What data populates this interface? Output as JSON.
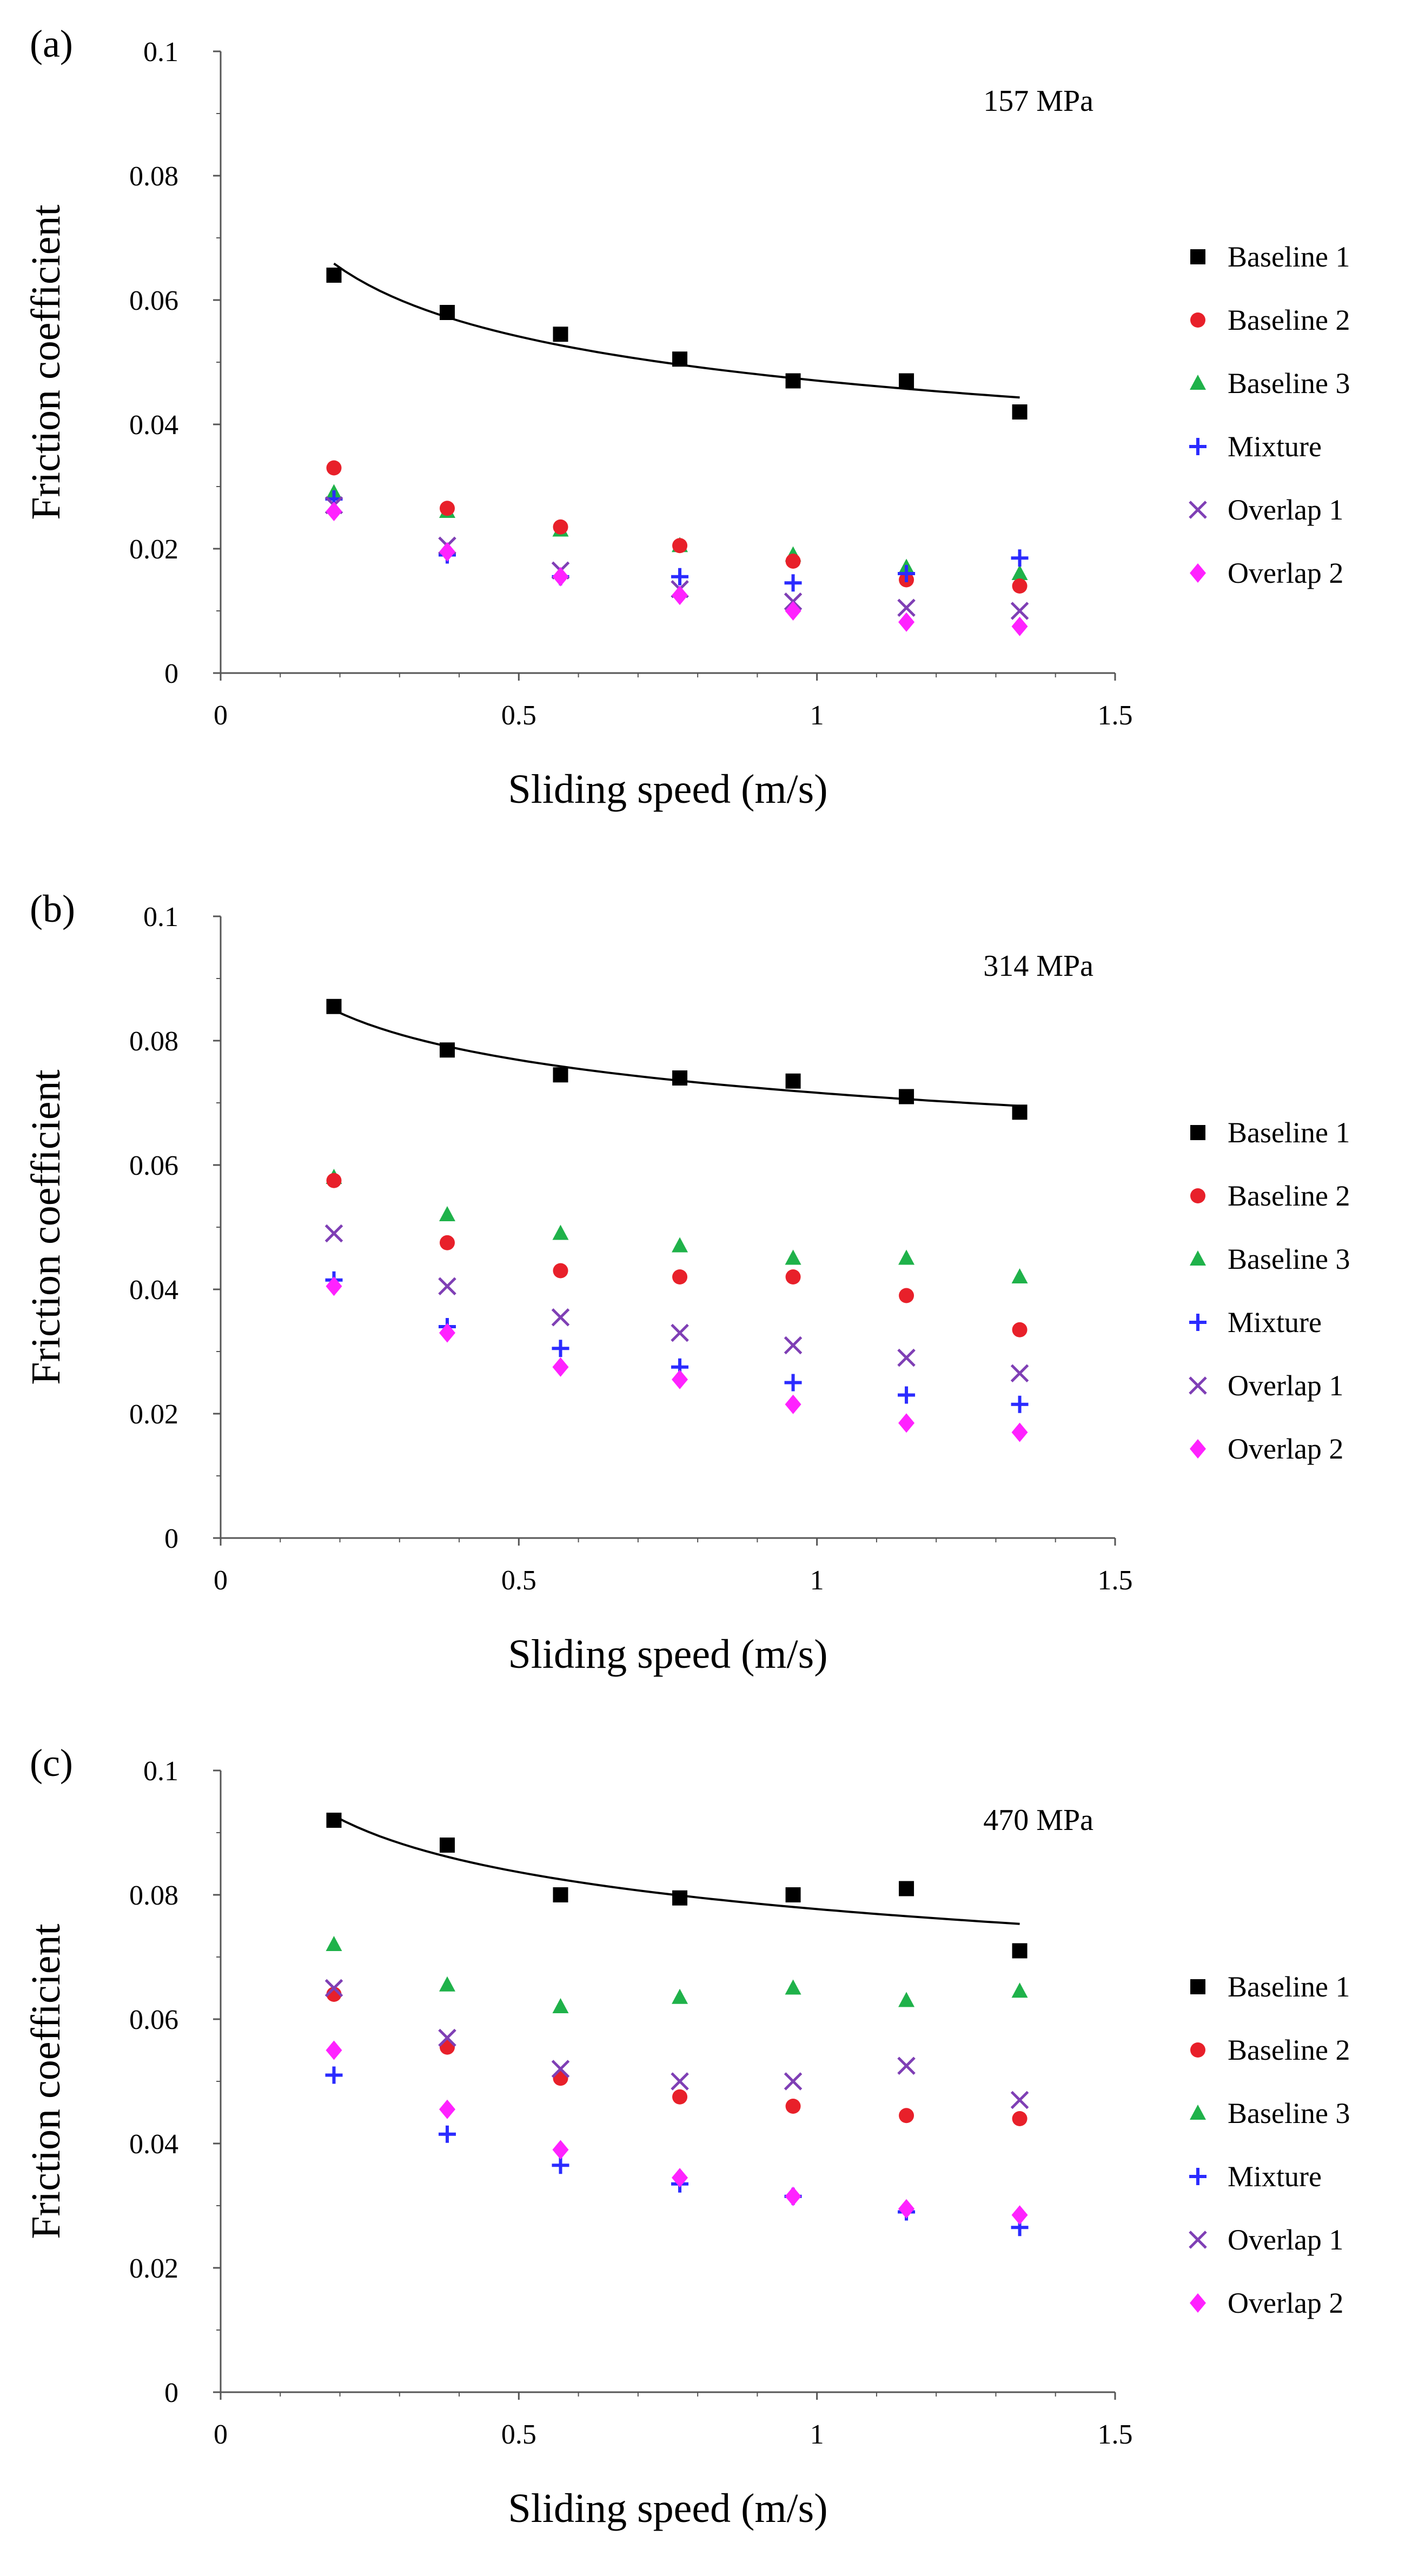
{
  "figure": {
    "xlabel": "Sliding speed (m/s)",
    "ylabel": "Friction coefficient",
    "legend": [
      "Baseline 1",
      "Baseline 2",
      "Baseline 3",
      "Mixture",
      "Overlap 1",
      "Overlap 2"
    ]
  },
  "chart_data": [
    {
      "type": "scatter",
      "panel_label": "(a)",
      "annotation": "157 MPa",
      "xlabel": "Sliding speed (m/s)",
      "ylabel": "Friction coefficient",
      "xlim": [
        0,
        1.5
      ],
      "ylim": [
        0,
        0.1
      ],
      "x_ticks": [
        "0",
        "0.5",
        "1",
        "1.5"
      ],
      "y_ticks": [
        "0",
        "0.02",
        "0.04",
        "0.06",
        "0.08",
        "0.1"
      ],
      "grid": false,
      "legend_position": "right",
      "x": [
        0.19,
        0.38,
        0.57,
        0.77,
        0.96,
        1.15,
        1.34
      ],
      "series": [
        {
          "name": "Baseline 1",
          "marker": "square",
          "color": "#000000",
          "values": [
            0.064,
            0.058,
            0.0545,
            0.0505,
            0.047,
            0.047,
            0.042
          ],
          "trendline": true
        },
        {
          "name": "Baseline 2",
          "marker": "circle",
          "color": "#e8202a",
          "values": [
            0.033,
            0.0265,
            0.0235,
            0.0205,
            0.018,
            0.015,
            0.014
          ]
        },
        {
          "name": "Baseline 3",
          "marker": "triangle",
          "color": "#1fb24a",
          "values": [
            0.029,
            0.026,
            0.023,
            0.0205,
            0.019,
            0.017,
            0.016
          ]
        },
        {
          "name": "Mixture",
          "marker": "plus",
          "color": "#2b2bff",
          "values": [
            0.028,
            0.019,
            0.0155,
            0.0155,
            0.0145,
            0.016,
            0.0185
          ]
        },
        {
          "name": "Overlap 1",
          "marker": "x",
          "color": "#7f3fb5",
          "values": [
            0.027,
            0.0205,
            0.0165,
            0.0135,
            0.0115,
            0.0105,
            0.01
          ]
        },
        {
          "name": "Overlap 2",
          "marker": "diamond",
          "color": "#ff22ff",
          "values": [
            0.026,
            0.0195,
            0.0155,
            0.0125,
            0.01,
            0.0082,
            0.0075
          ]
        }
      ]
    },
    {
      "type": "scatter",
      "panel_label": "(b)",
      "annotation": "314 MPa",
      "xlabel": "Sliding speed (m/s)",
      "ylabel": "Friction coefficient",
      "xlim": [
        0,
        1.5
      ],
      "ylim": [
        0,
        0.1
      ],
      "x_ticks": [
        "0",
        "0.5",
        "1",
        "1.5"
      ],
      "y_ticks": [
        "0",
        "0.02",
        "0.04",
        "0.06",
        "0.08",
        "0.1"
      ],
      "grid": false,
      "legend_position": "right",
      "x": [
        0.19,
        0.38,
        0.57,
        0.77,
        0.96,
        1.15,
        1.34
      ],
      "series": [
        {
          "name": "Baseline 1",
          "marker": "square",
          "color": "#000000",
          "values": [
            0.0855,
            0.0785,
            0.0745,
            0.074,
            0.0735,
            0.071,
            0.0685
          ],
          "trendline": true
        },
        {
          "name": "Baseline 2",
          "marker": "circle",
          "color": "#e8202a",
          "values": [
            0.0575,
            0.0475,
            0.043,
            0.042,
            0.042,
            0.039,
            0.0335
          ]
        },
        {
          "name": "Baseline 3",
          "marker": "triangle",
          "color": "#1fb24a",
          "values": [
            0.058,
            0.052,
            0.049,
            0.047,
            0.045,
            0.045,
            0.042
          ]
        },
        {
          "name": "Mixture",
          "marker": "plus",
          "color": "#2b2bff",
          "values": [
            0.0415,
            0.034,
            0.0305,
            0.0275,
            0.025,
            0.023,
            0.0215
          ]
        },
        {
          "name": "Overlap 1",
          "marker": "x",
          "color": "#7f3fb5",
          "values": [
            0.049,
            0.0405,
            0.0355,
            0.033,
            0.031,
            0.029,
            0.0265
          ]
        },
        {
          "name": "Overlap 2",
          "marker": "diamond",
          "color": "#ff22ff",
          "values": [
            0.0405,
            0.033,
            0.0275,
            0.0255,
            0.0215,
            0.0185,
            0.017
          ]
        }
      ]
    },
    {
      "type": "scatter",
      "panel_label": "(c)",
      "annotation": "470 MPa",
      "xlabel": "Sliding speed (m/s)",
      "ylabel": "Friction coefficient",
      "xlim": [
        0,
        1.5
      ],
      "ylim": [
        0,
        0.1
      ],
      "x_ticks": [
        "0",
        "0.5",
        "1",
        "1.5"
      ],
      "y_ticks": [
        "0",
        "0.02",
        "0.04",
        "0.06",
        "0.08",
        "0.1"
      ],
      "grid": false,
      "legend_position": "right",
      "x": [
        0.19,
        0.38,
        0.57,
        0.77,
        0.96,
        1.15,
        1.34
      ],
      "series": [
        {
          "name": "Baseline 1",
          "marker": "square",
          "color": "#000000",
          "values": [
            0.092,
            0.088,
            0.08,
            0.0795,
            0.08,
            0.081,
            0.071
          ],
          "trendline": true
        },
        {
          "name": "Baseline 2",
          "marker": "circle",
          "color": "#e8202a",
          "values": [
            0.064,
            0.0555,
            0.0505,
            0.0475,
            0.046,
            0.0445,
            0.044
          ]
        },
        {
          "name": "Baseline 3",
          "marker": "triangle",
          "color": "#1fb24a",
          "values": [
            0.072,
            0.0655,
            0.062,
            0.0635,
            0.065,
            0.063,
            0.0645
          ]
        },
        {
          "name": "Mixture",
          "marker": "plus",
          "color": "#2b2bff",
          "values": [
            0.051,
            0.0415,
            0.0365,
            0.0335,
            0.0315,
            0.029,
            0.0265
          ]
        },
        {
          "name": "Overlap 1",
          "marker": "x",
          "color": "#7f3fb5",
          "values": [
            0.065,
            0.057,
            0.052,
            0.05,
            0.05,
            0.0525,
            0.047
          ]
        },
        {
          "name": "Overlap 2",
          "marker": "diamond",
          "color": "#ff22ff",
          "values": [
            0.055,
            0.0455,
            0.039,
            0.0345,
            0.0315,
            0.0295,
            0.0285
          ]
        }
      ]
    }
  ]
}
